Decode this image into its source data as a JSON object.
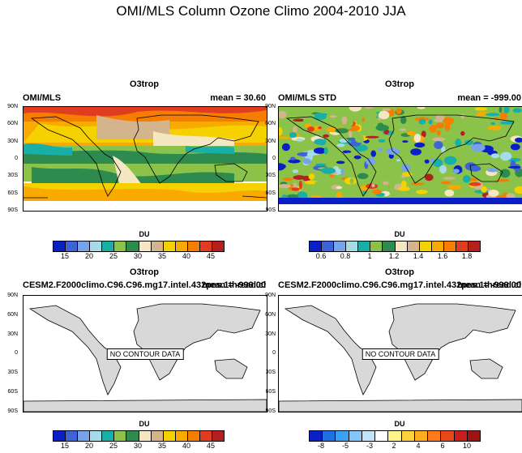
{
  "title": "OMI/MLS Column Ozone Climo 2004-2010 JJA",
  "lat_ticks": [
    "90N",
    "60N",
    "30N",
    "0",
    "30S",
    "60S",
    "90S"
  ],
  "colors": {
    "o3": [
      "#0a1fc6",
      "#3d63d7",
      "#77a3e8",
      "#a6dbe8",
      "#18b0a6",
      "#8bc34a",
      "#2e8b4f",
      "#f5e7c2",
      "#d3b48c",
      "#f5d100",
      "#f9a900",
      "#f57d00",
      "#e03c1f",
      "#b3201f"
    ],
    "std": [
      "#0a1fc6",
      "#3d63d7",
      "#77a3e8",
      "#a6dbe8",
      "#18b0a6",
      "#8bc34a",
      "#2e8b4f",
      "#f5e7c2",
      "#d3b48c",
      "#f5d100",
      "#f9a900",
      "#f57d00",
      "#e03c1f",
      "#b3201f"
    ],
    "diff": [
      "#0a1fc6",
      "#1f70e0",
      "#3aa2f2",
      "#83c7f8",
      "#c2e4fb",
      "#ffffff",
      "#fff38a",
      "#ffd23d",
      "#ffad1f",
      "#ff7b1a",
      "#e94818",
      "#c81e1e",
      "#9c1414"
    ],
    "land": "#d8d8d8"
  },
  "panels": [
    {
      "title": "O3trop",
      "left": "OMI/MLS",
      "right": "mean =  30.60",
      "colorbar_unit": "DU",
      "colorbar_ticks": [
        "15",
        "20",
        "25",
        "30",
        "35",
        "40",
        "45"
      ],
      "scale": "o3",
      "no_data": ""
    },
    {
      "title": "O3trop",
      "left": "OMI/MLS STD",
      "right": "mean = -999.00",
      "colorbar_unit": "DU",
      "colorbar_ticks": [
        "0.6",
        "0.8",
        "1",
        "1.2",
        "1.4",
        "1.6",
        "1.8"
      ],
      "scale": "std",
      "no_data": ""
    },
    {
      "title": "O3trop",
      "left": "CESM2.F2000climo.C96.C96.mg17.intel.432pes.1thread.ch013b",
      "right": "mean = -999.00",
      "colorbar_unit": "DU",
      "colorbar_ticks": [
        "15",
        "20",
        "25",
        "30",
        "35",
        "40",
        "45"
      ],
      "scale": "o3",
      "no_data": "NO CONTOUR DATA"
    },
    {
      "title": "O3trop",
      "left": "CESM2.F2000climo.C96.C96.mg17.intel.432pes.1thread.ch013b",
      "right": "mean = -999.00",
      "colorbar_unit": "DU",
      "colorbar_ticks": [
        "-8",
        "-5",
        "-3",
        "2",
        "4",
        "6",
        "10"
      ],
      "scale": "diff",
      "no_data": "NO CONTOUR DATA"
    }
  ],
  "chart_data": [
    {
      "type": "heatmap",
      "title": "O3trop",
      "subtitle": "OMI/MLS",
      "annotation": "mean =  30.60",
      "unit": "DU",
      "colorbar_levels": [
        12.5,
        15,
        17.5,
        20,
        22.5,
        25,
        27.5,
        30,
        32.5,
        35,
        37.5,
        40,
        42.5,
        45,
        47.5
      ],
      "lat_range": [
        -90,
        90
      ],
      "lon_range": [
        0,
        360
      ]
    },
    {
      "type": "heatmap",
      "title": "O3trop",
      "subtitle": "OMI/MLS STD",
      "annotation": "mean = -999.00",
      "unit": "DU",
      "colorbar_levels": [
        0.5,
        0.6,
        0.7,
        0.8,
        0.9,
        1.0,
        1.1,
        1.2,
        1.3,
        1.4,
        1.5,
        1.6,
        1.7,
        1.8,
        1.9
      ],
      "lat_range": [
        -90,
        90
      ],
      "lon_range": [
        0,
        360
      ]
    },
    {
      "type": "heatmap",
      "title": "O3trop",
      "subtitle": "CESM2.F2000climo.C96.C96.mg17.intel.432pes.1thread.ch013b",
      "annotation": "mean = -999.00",
      "unit": "DU",
      "status": "NO CONTOUR DATA"
    },
    {
      "type": "heatmap",
      "title": "O3trop",
      "subtitle": "CESM2.F2000climo.C96.C96.mg17.intel.432pes.1thread.ch013b",
      "annotation": "mean = -999.00",
      "unit": "DU",
      "status": "NO CONTOUR DATA",
      "colorbar_levels": [
        -8,
        -5,
        -3,
        2,
        4,
        6,
        10
      ]
    }
  ]
}
